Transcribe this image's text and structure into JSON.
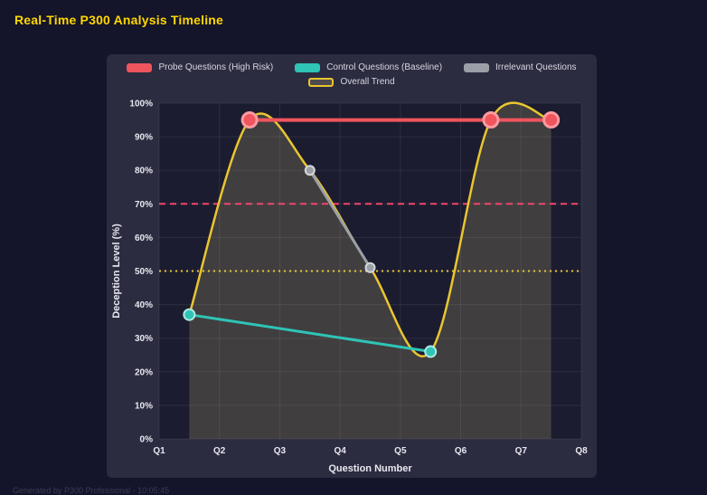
{
  "page": {
    "title": "Real-Time P300 Analysis Timeline",
    "footer": "Generated by P300 Professional - 10:05:45"
  },
  "colors": {
    "title": "#ffd700",
    "page_bg": "#14142a",
    "card_bg": "#2c2c41",
    "plot_bg": "#1c1c30",
    "grid": "rgba(255,255,255,0.08)",
    "axis_text": "#e8e8f0",
    "legend_text": "#d6d6e0",
    "footer_text": "#3c3c52"
  },
  "chart_data": {
    "type": "line",
    "title": "Real-Time P300 Analysis Timeline",
    "xlabel": "Question Number",
    "ylabel": "Deception Level (%)",
    "x_range": [
      1,
      8
    ],
    "ylim": [
      0,
      100
    ],
    "y_tick_step": 10,
    "y_tick_suffix": "%",
    "grid": true,
    "legend_position": "top",
    "x_ticks": [
      {
        "value": 1,
        "label": "Q1"
      },
      {
        "value": 2,
        "label": "Q2"
      },
      {
        "value": 3,
        "label": "Q3"
      },
      {
        "value": 4,
        "label": "Q4"
      },
      {
        "value": 5,
        "label": "Q5"
      },
      {
        "value": 6,
        "label": "Q6"
      },
      {
        "value": 7,
        "label": "Q7"
      },
      {
        "value": 8,
        "label": "Q8"
      }
    ],
    "thresholds": [
      {
        "y": 70,
        "color": "#f1456b",
        "style": "dashed"
      },
      {
        "y": 50,
        "color": "#e9c62f",
        "style": "dotted"
      }
    ],
    "series": [
      {
        "name": "Probe Questions (High Risk)",
        "color": "#f0545c",
        "legend_fill": "#f0545c",
        "marker_border": "#ff9aa0",
        "marker_radius": 8,
        "line_width": 4,
        "smooth": false,
        "points": [
          {
            "x": 2.5,
            "y": 95
          },
          {
            "x": 6.5,
            "y": 95
          },
          {
            "x": 7.5,
            "y": 95
          }
        ]
      },
      {
        "name": "Control Questions (Baseline)",
        "color": "#2ec4b6",
        "legend_fill": "#2ec4b6",
        "marker_border": "#aee9e2",
        "marker_radius": 6,
        "line_width": 3,
        "smooth": false,
        "points": [
          {
            "x": 1.5,
            "y": 37
          },
          {
            "x": 5.5,
            "y": 26
          }
        ]
      },
      {
        "name": "Irrelevant Questions",
        "color": "#9aa0a6",
        "legend_fill": "#9aa0a6",
        "marker_border": "#d3d6da",
        "marker_radius": 5,
        "line_width": 3,
        "smooth": false,
        "points": [
          {
            "x": 3.5,
            "y": 80
          },
          {
            "x": 4.5,
            "y": 51
          }
        ]
      },
      {
        "name": "Overall Trend",
        "color": "#e9c62f",
        "legend_fill": "rgba(217,200,130,0.20)",
        "fill": "rgba(217,200,130,0.20)",
        "marker_border": "#e9c62f",
        "marker_radius": 0,
        "line_width": 2.5,
        "smooth": true,
        "points": [
          {
            "x": 1.5,
            "y": 37
          },
          {
            "x": 2.5,
            "y": 95
          },
          {
            "x": 3.5,
            "y": 80
          },
          {
            "x": 4.5,
            "y": 51
          },
          {
            "x": 5.5,
            "y": 26
          },
          {
            "x": 6.5,
            "y": 95
          },
          {
            "x": 7.5,
            "y": 95
          }
        ]
      }
    ]
  }
}
